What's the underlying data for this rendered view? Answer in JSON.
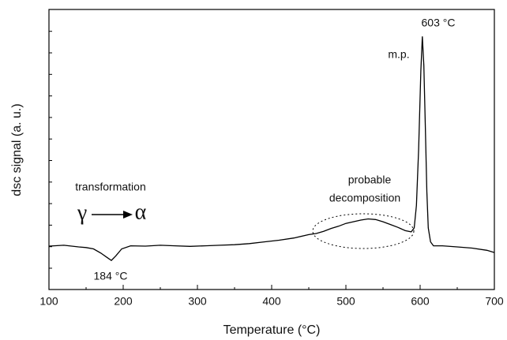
{
  "chart_data": {
    "type": "line",
    "xlabel": "Temperature  (°C)",
    "ylabel": "dsc signal    (a. u.)",
    "xlim": [
      100,
      700
    ],
    "xticks": [
      100,
      200,
      300,
      400,
      500,
      600,
      700
    ],
    "ylim": [
      0,
      100
    ],
    "series": [
      {
        "color": "#000000",
        "x": [
          100,
          120,
          140,
          150,
          160,
          170,
          178,
          184,
          190,
          198,
          210,
          230,
          250,
          270,
          290,
          310,
          330,
          350,
          370,
          390,
          410,
          430,
          450,
          460,
          470,
          480,
          490,
          500,
          510,
          520,
          530,
          540,
          550,
          560,
          570,
          580,
          588,
          592,
          595,
          598,
          601,
          603,
          605,
          607,
          609,
          611,
          614,
          618,
          630,
          650,
          670,
          690,
          700
        ],
        "values": [
          15.5,
          15.8,
          15.2,
          15.0,
          14.5,
          13.0,
          11.5,
          10.4,
          12.0,
          14.5,
          15.6,
          15.5,
          15.8,
          15.6,
          15.4,
          15.6,
          15.8,
          16.0,
          16.4,
          17.0,
          17.6,
          18.4,
          19.6,
          20.0,
          20.8,
          21.8,
          22.6,
          23.6,
          24.2,
          24.8,
          25.2,
          25.0,
          24.2,
          23.2,
          22.2,
          21.0,
          20.6,
          22.0,
          30,
          50,
          78,
          90.4,
          80,
          58,
          35,
          22,
          17,
          15.6,
          15.6,
          15.2,
          14.8,
          14.0,
          13.2
        ]
      }
    ],
    "annotations": [
      "603 °C",
      "m.p.",
      "184 °C",
      "transformation",
      "γ",
      "α",
      "probable",
      "decomposition"
    ]
  }
}
